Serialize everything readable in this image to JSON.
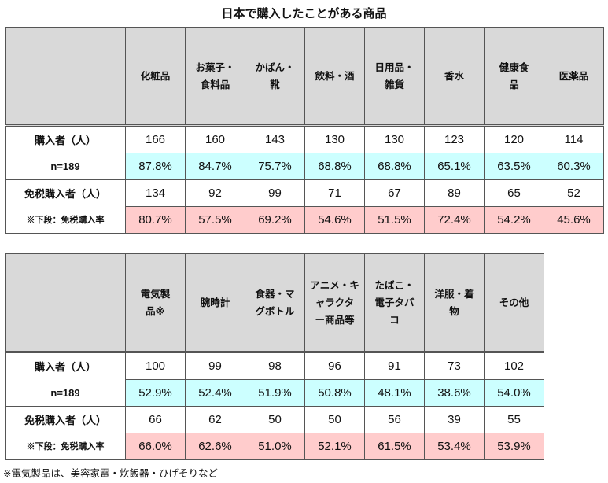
{
  "title": "日本で購入したことがある商品",
  "row_labels": {
    "buyers": "購入者（人）",
    "n": "n=189",
    "taxfree": "免税購入者（人）",
    "note": "※下段：免税購入率"
  },
  "table1": {
    "headers": [
      "化粧品",
      "お菓子・\n食料品",
      "かばん・\n靴",
      "飲料・酒",
      "日用品・\n雑貨",
      "香水",
      "健康食\n品",
      "医薬品"
    ],
    "buyers": [
      "166",
      "160",
      "143",
      "130",
      "130",
      "123",
      "120",
      "114"
    ],
    "buyer_rate": [
      "87.8%",
      "84.7%",
      "75.7%",
      "68.8%",
      "68.8%",
      "65.1%",
      "63.5%",
      "60.3%"
    ],
    "taxfree": [
      "134",
      "92",
      "99",
      "71",
      "67",
      "89",
      "65",
      "52"
    ],
    "taxfree_rate": [
      "80.7%",
      "57.5%",
      "69.2%",
      "54.6%",
      "51.5%",
      "72.4%",
      "54.2%",
      "45.6%"
    ]
  },
  "table2": {
    "headers": [
      "電気製\n品※",
      "腕時計",
      "食器・マ\nグボトル",
      "アニメ・キ\nャラクタ\nー商品等",
      "たばこ・\n電子タバ\nコ",
      "洋服・着\n物",
      "その他"
    ],
    "buyers": [
      "100",
      "99",
      "98",
      "96",
      "91",
      "73",
      "102"
    ],
    "buyer_rate": [
      "52.9%",
      "52.4%",
      "51.9%",
      "50.8%",
      "48.1%",
      "38.6%",
      "54.0%"
    ],
    "taxfree": [
      "66",
      "62",
      "50",
      "50",
      "56",
      "39",
      "55"
    ],
    "taxfree_rate": [
      "66.0%",
      "62.6%",
      "51.0%",
      "52.1%",
      "61.5%",
      "53.4%",
      "53.9%"
    ]
  },
  "footnote": "※電気製品は、美容家電・炊飯器・ひげそりなど",
  "colors": {
    "header_bg": "#d9d9d9",
    "rate_bg": "#ccffff",
    "taxfree_rate_bg": "#ffcccc"
  }
}
